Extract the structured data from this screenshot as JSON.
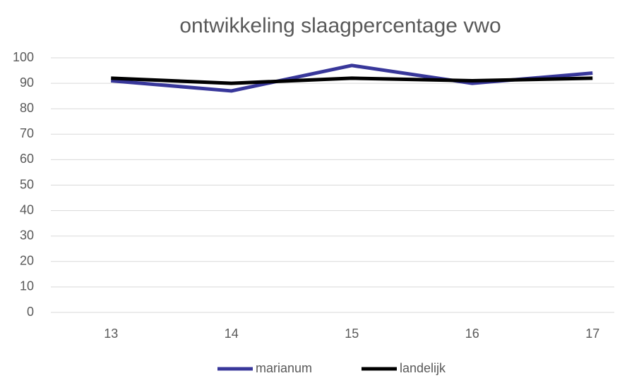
{
  "chart_data": {
    "type": "line",
    "title": "ontwikkeling slaagpercentage vwo",
    "categories": [
      "13",
      "14",
      "15",
      "16",
      "17"
    ],
    "series": [
      {
        "name": "marianum",
        "color": "#38379a",
        "values": [
          91,
          87,
          97,
          90,
          94
        ]
      },
      {
        "name": "landelijk",
        "color": "#000000",
        "values": [
          92,
          90,
          92,
          91,
          92
        ]
      }
    ],
    "ylim": [
      0,
      100
    ],
    "yticks": [
      0,
      10,
      20,
      30,
      40,
      50,
      60,
      70,
      80,
      90,
      100
    ],
    "grid": true,
    "legend": "bottom"
  }
}
